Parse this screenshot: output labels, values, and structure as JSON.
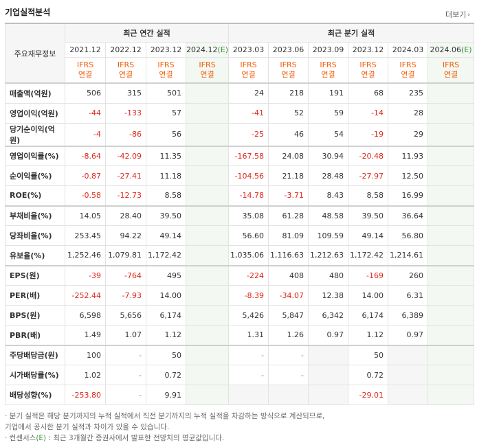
{
  "title": "기업실적분석",
  "more_label": "더보기",
  "header": {
    "row_label": "주요재무정보",
    "annual_group": "최근 연간 실적",
    "quarter_group": "최근 분기 실적",
    "ifrs_line1": "IFRS",
    "ifrs_line2": "연결",
    "est_suffix": "(E)"
  },
  "periods": [
    {
      "label": "2021.12",
      "est": false
    },
    {
      "label": "2022.12",
      "est": false
    },
    {
      "label": "2023.12",
      "est": false
    },
    {
      "label": "2024.12",
      "est": true
    },
    {
      "label": "2023.03",
      "est": false
    },
    {
      "label": "2023.06",
      "est": false
    },
    {
      "label": "2023.09",
      "est": false
    },
    {
      "label": "2023.12",
      "est": false
    },
    {
      "label": "2024.03",
      "est": false
    },
    {
      "label": "2024.06",
      "est": true
    }
  ],
  "rows": [
    {
      "label": "매출액(억원)",
      "values": [
        "506",
        "315",
        "501",
        "",
        "24",
        "218",
        "191",
        "68",
        "235",
        ""
      ]
    },
    {
      "label": "영업이익(억원)",
      "values": [
        "-44",
        "-133",
        "57",
        "",
        "-41",
        "52",
        "59",
        "-14",
        "28",
        ""
      ]
    },
    {
      "label": "당기순이익(억원)",
      "values": [
        "-4",
        "-86",
        "56",
        "",
        "-25",
        "46",
        "54",
        "-19",
        "29",
        ""
      ]
    },
    {
      "label": "영업이익률(%)",
      "values": [
        "-8.64",
        "-42.09",
        "11.35",
        "",
        "-167.58",
        "24.08",
        "30.94",
        "-20.48",
        "11.93",
        ""
      ]
    },
    {
      "label": "순이익률(%)",
      "values": [
        "-0.87",
        "-27.41",
        "11.18",
        "",
        "-104.56",
        "21.18",
        "28.48",
        "-27.97",
        "12.50",
        ""
      ]
    },
    {
      "label": "ROE(%)",
      "values": [
        "-0.58",
        "-12.73",
        "8.58",
        "",
        "-14.78",
        "-3.71",
        "8.43",
        "8.58",
        "16.99",
        ""
      ]
    },
    {
      "label": "부채비율(%)",
      "values": [
        "14.05",
        "28.40",
        "39.50",
        "",
        "35.08",
        "61.28",
        "48.58",
        "39.50",
        "36.64",
        ""
      ]
    },
    {
      "label": "당좌비율(%)",
      "values": [
        "253.45",
        "94.22",
        "49.14",
        "",
        "56.60",
        "81.09",
        "109.59",
        "49.14",
        "56.80",
        ""
      ]
    },
    {
      "label": "유보율(%)",
      "values": [
        "1,252.46",
        "1,079.81",
        "1,172.42",
        "",
        "1,035.06",
        "1,116.63",
        "1,212.63",
        "1,172.42",
        "1,214.61",
        ""
      ]
    },
    {
      "label": "EPS(원)",
      "values": [
        "-39",
        "-764",
        "495",
        "",
        "-224",
        "408",
        "480",
        "-169",
        "260",
        ""
      ]
    },
    {
      "label": "PER(배)",
      "values": [
        "-252.44",
        "-7.93",
        "14.00",
        "",
        "-8.39",
        "-34.07",
        "12.38",
        "14.00",
        "6.31",
        ""
      ]
    },
    {
      "label": "BPS(원)",
      "values": [
        "6,598",
        "5,656",
        "6,174",
        "",
        "5,426",
        "5,847",
        "6,342",
        "6,174",
        "6,389",
        ""
      ]
    },
    {
      "label": "PBR(배)",
      "values": [
        "1.49",
        "1.07",
        "1.12",
        "",
        "1.31",
        "1.26",
        "0.97",
        "1.12",
        "0.97",
        ""
      ]
    },
    {
      "label": "주당배당금(원)",
      "values": [
        "100",
        "-",
        "50",
        "",
        "-",
        "-",
        "",
        "50",
        "",
        ""
      ]
    },
    {
      "label": "시가배당률(%)",
      "values": [
        "1.02",
        "-",
        "0.72",
        "",
        "-",
        "-",
        "",
        "0.72",
        "",
        ""
      ]
    },
    {
      "label": "배당성향(%)",
      "values": [
        "-253.80",
        "-",
        "9.91",
        "",
        "",
        "",
        "",
        "-29.01",
        "",
        ""
      ]
    }
  ],
  "notes": {
    "line1": "· 분기 실적은 해당 분기까지의 누적 실적에서 직전 분기까지의 누적 실적을 차감하는 방식으로 계산되므로,",
    "line2": "  기업에서 공시한 분기 실적과 차이가 있을 수 있습니다.",
    "line3_prefix": "· 컨센서스",
    "line3_mark": "(E)",
    "line3_suffix": " : 최근 3개월간 증권사에서 발표한 전망치의 평균값입니다."
  }
}
